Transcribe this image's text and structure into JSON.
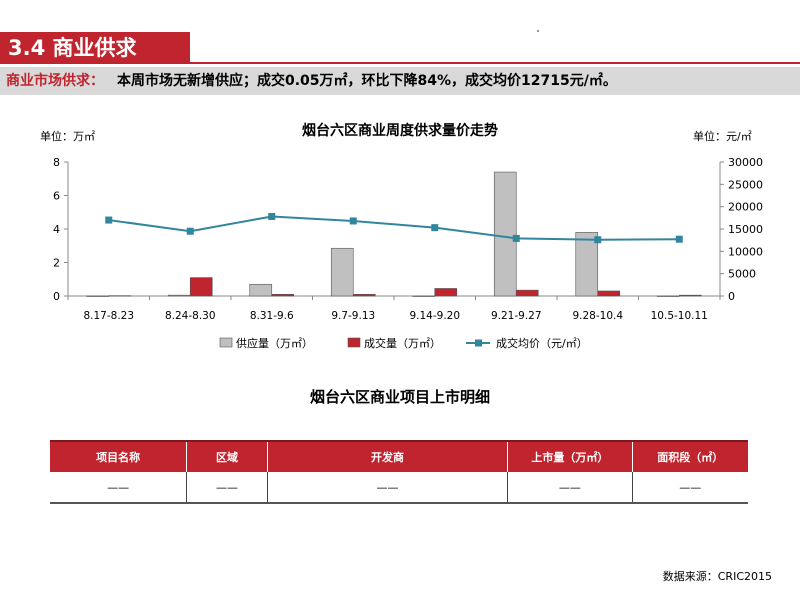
{
  "header": {
    "section_title": "3.4 商业供求",
    "summary_label": "商业市场供求：",
    "summary_text": "本周市场无新增供应；成交0.05万㎡，环比下降84%，成交均价12715元/㎡。"
  },
  "chart_data": {
    "type": "bar",
    "title": "烟台六区商业周度供求量价走势",
    "y_left_unit": "单位：万㎡",
    "y_right_unit": "单位：元/㎡",
    "categories": [
      "8.17-8.23",
      "8.24-8.30",
      "8.31-9.6",
      "9.7-9.13",
      "9.14-9.20",
      "9.21-9.27",
      "9.28-10.4",
      "10.5-10.11"
    ],
    "y_left_ticks": [
      "0",
      "2",
      "4",
      "6",
      "8"
    ],
    "y_right_ticks": [
      "0",
      "5000",
      "10000",
      "15000",
      "20000",
      "25000",
      "30000"
    ],
    "ylim_left": [
      0,
      8
    ],
    "ylim_right": [
      0,
      30000
    ],
    "series": [
      {
        "name": "供应量（万㎡）",
        "type": "bar",
        "axis": "left",
        "color": "#c0c0c0",
        "values": [
          0,
          0.05,
          0.7,
          2.85,
          0,
          7.4,
          3.8,
          0
        ]
      },
      {
        "name": "成交量（万㎡）",
        "type": "bar",
        "axis": "left",
        "color": "#c0242e",
        "values": [
          0.02,
          1.1,
          0.1,
          0.1,
          0.45,
          0.35,
          0.3,
          0.05
        ]
      },
      {
        "name": "成交均价（元/㎡）",
        "type": "line",
        "axis": "right",
        "color": "#31859c",
        "values": [
          17000,
          14500,
          17800,
          16800,
          15300,
          12900,
          12600,
          12715
        ]
      }
    ],
    "grid": false,
    "legend_position": "bottom"
  },
  "table": {
    "title": "烟台六区商业项目上市明细",
    "headers": [
      "项目名称",
      "区域",
      "开发商",
      "上市量（万㎡）",
      "面积段（㎡）"
    ],
    "rows": [
      [
        "——",
        "——",
        "——",
        "——",
        "——"
      ]
    ]
  },
  "footer": {
    "source": "数据来源：CRIC2015"
  }
}
